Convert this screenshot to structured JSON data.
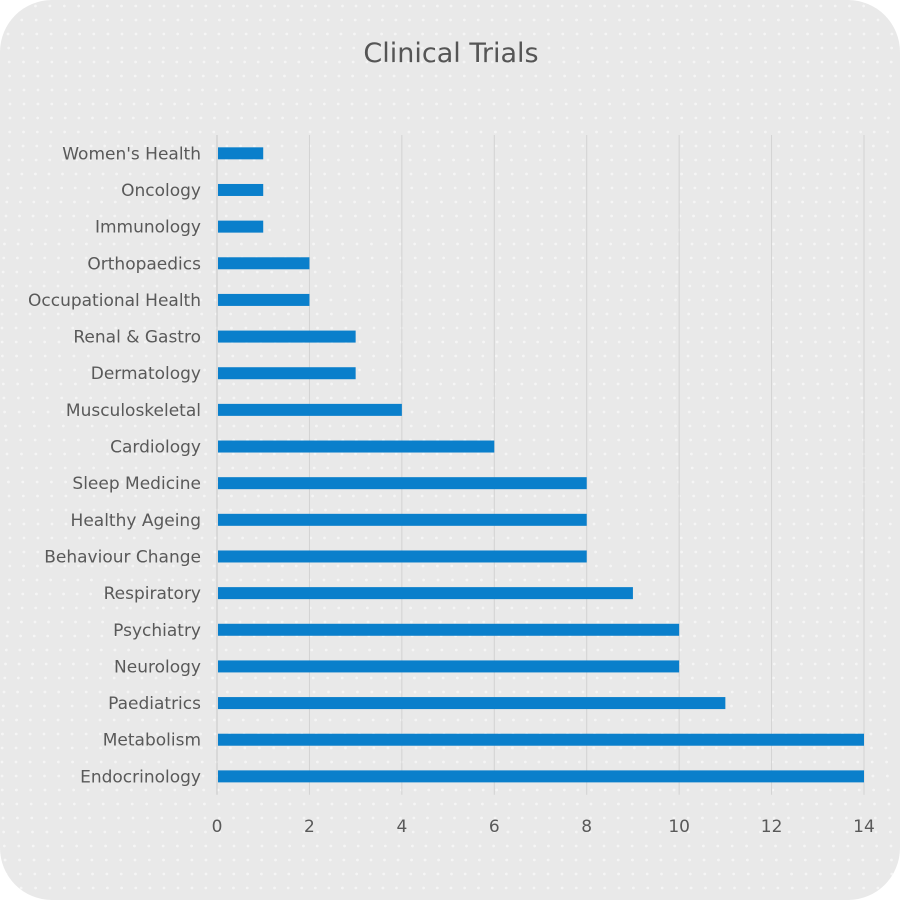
{
  "chart_data": {
    "type": "bar",
    "orientation": "horizontal",
    "title": "Clinical Trials",
    "xlabel": "",
    "ylabel": "",
    "xlim": [
      0,
      14
    ],
    "x_ticks": [
      "0",
      "2",
      "4",
      "6",
      "8",
      "10",
      "12",
      "14"
    ],
    "grid": "vertical",
    "legend": "none",
    "bar_color": "#0a7fcb",
    "categories": [
      "Women's Health",
      "Oncology",
      "Immunology",
      "Orthopaedics",
      "Occupational Health",
      "Renal & Gastro",
      "Dermatology",
      "Musculoskeletal",
      "Cardiology",
      "Sleep Medicine",
      "Healthy Ageing",
      "Behaviour Change",
      "Respiratory",
      "Psychiatry",
      "Neurology",
      "Paediatrics",
      "Metabolism",
      "Endocrinology"
    ],
    "values": [
      1,
      1,
      1,
      2,
      2,
      3,
      3,
      4,
      6,
      8,
      8,
      8,
      9,
      10,
      10,
      11,
      14,
      14
    ]
  }
}
